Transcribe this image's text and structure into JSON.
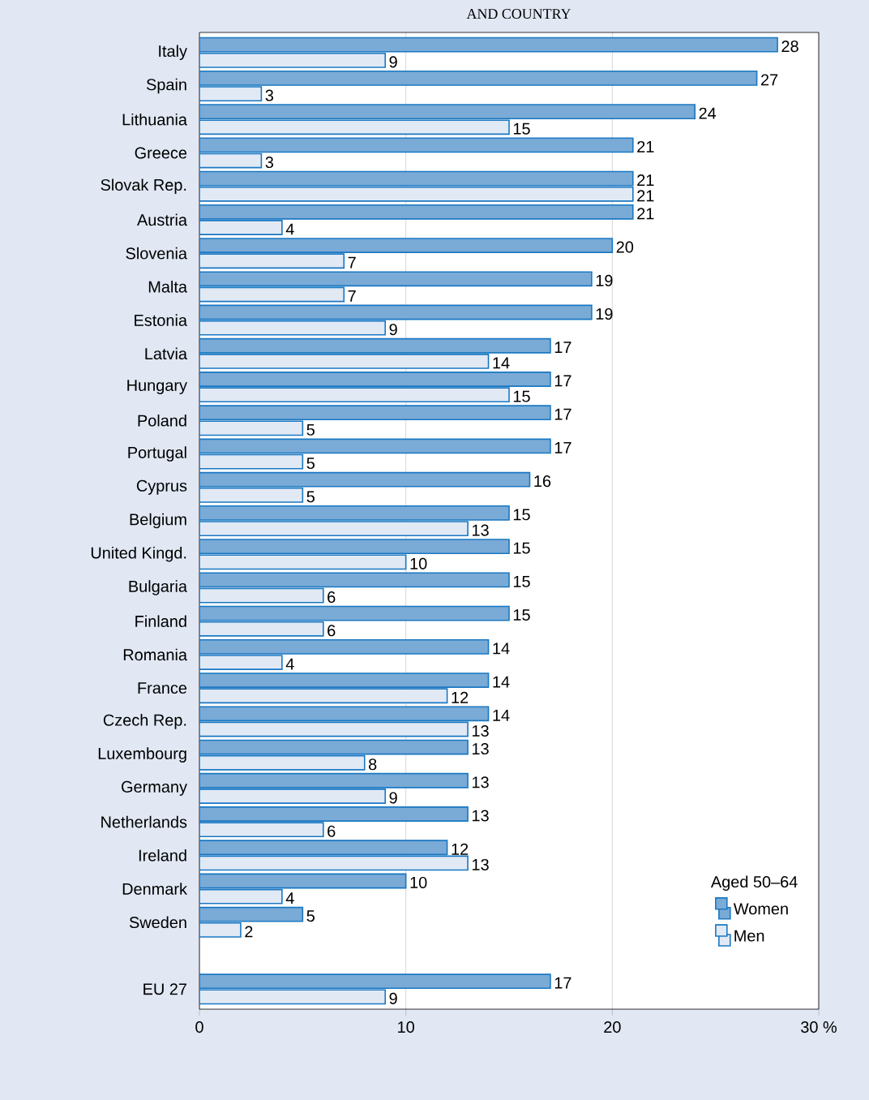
{
  "chart_data": {
    "type": "bar",
    "orientation": "horizontal",
    "title": "AND COUNTRY",
    "categories": [
      "Italy",
      "Spain",
      "Lithuania",
      "Greece",
      "Slovak Rep.",
      "Austria",
      "Slovenia",
      "Malta",
      "Estonia",
      "Latvia",
      "Hungary",
      "Poland",
      "Portugal",
      "Cyprus",
      "Belgium",
      "United Kingd.",
      "Bulgaria",
      "Finland",
      "Romania",
      "France",
      "Czech Rep.",
      "Luxembourg",
      "Germany",
      "Netherlands",
      "Ireland",
      "Denmark",
      "Sweden",
      null,
      "EU 27"
    ],
    "series": [
      {
        "name": "Women",
        "color": "#7aaad6",
        "values": [
          28,
          27,
          24,
          21,
          21,
          21,
          20,
          19,
          19,
          17,
          17,
          17,
          17,
          16,
          15,
          15,
          15,
          15,
          14,
          14,
          14,
          13,
          13,
          13,
          12,
          10,
          5,
          null,
          17
        ]
      },
      {
        "name": "Men",
        "color": "#e1e9f5",
        "values": [
          9,
          3,
          15,
          3,
          21,
          4,
          7,
          7,
          9,
          14,
          15,
          5,
          5,
          5,
          13,
          10,
          6,
          6,
          4,
          12,
          13,
          8,
          9,
          6,
          13,
          4,
          2,
          null,
          9
        ]
      }
    ],
    "legend_title": "Aged 50–64",
    "legend": "bottom right",
    "data_labels": true,
    "grid": "x",
    "xlim": [
      0,
      30
    ],
    "xticks": [
      0,
      10,
      20,
      {
        "value": 30,
        "label": "30 %"
      }
    ]
  }
}
